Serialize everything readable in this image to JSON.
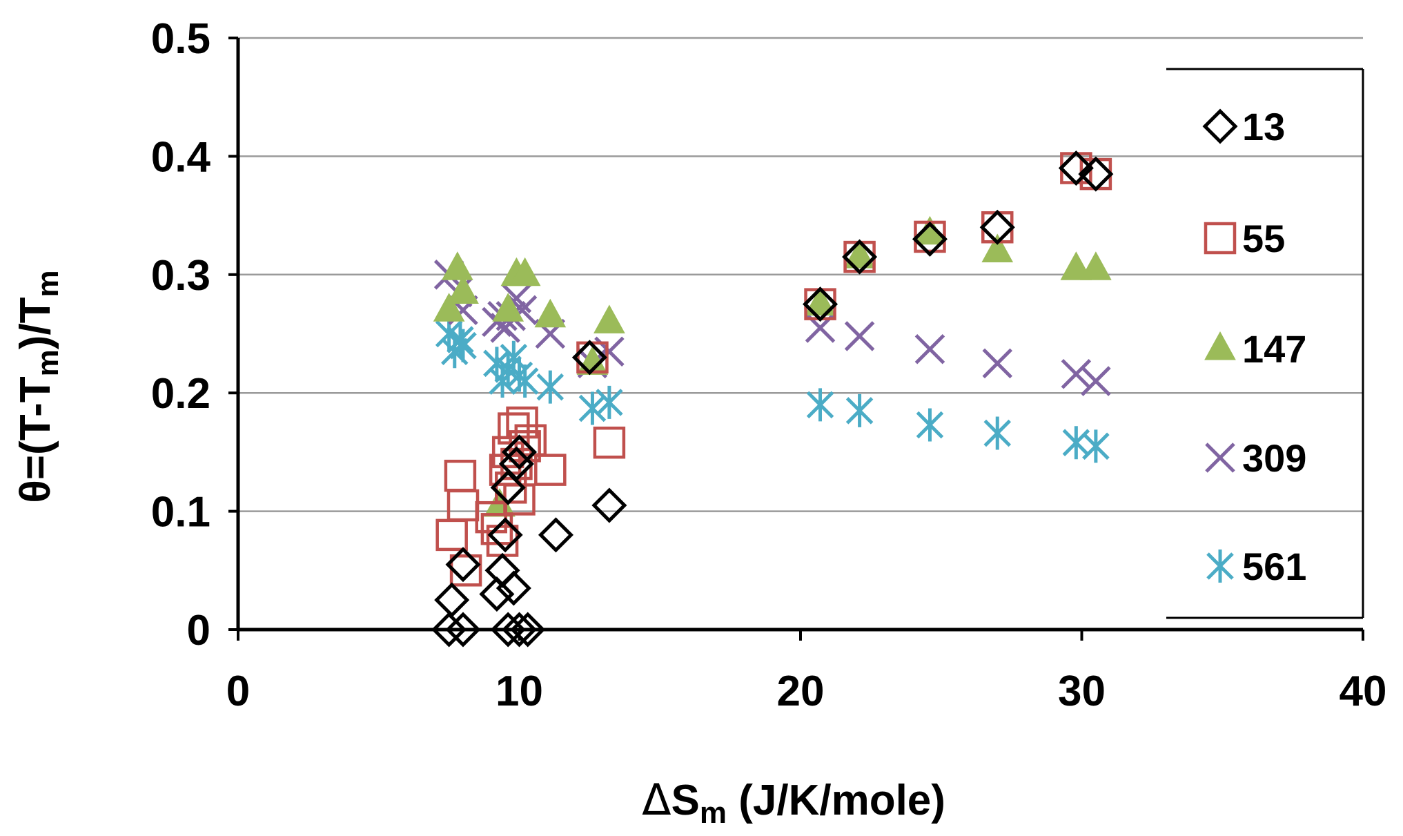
{
  "chart_data": {
    "type": "scatter",
    "title": "",
    "xlabel": "ΔSm (J/K/mole)",
    "xlabel_parts": {
      "delta": "Δ",
      "s": "S",
      "sub": "m",
      "unit": " (J/K/mole)"
    },
    "ylabel": "θ=(T-Tm)/Tm",
    "ylabel_parts": {
      "p1": "θ=(T-T",
      "sub1": "m",
      "p2": ")/T",
      "sub2": "m"
    },
    "xlim": [
      0,
      40
    ],
    "ylim": [
      0,
      0.5
    ],
    "x_ticks": [
      0,
      10,
      20,
      30,
      40
    ],
    "x_tick_labels": [
      "0",
      "10",
      "20",
      "30",
      "40"
    ],
    "y_ticks": [
      0,
      0.1,
      0.2,
      0.3,
      0.4,
      0.5
    ],
    "y_tick_labels": [
      "0",
      "0.1",
      "0.2",
      "0.3",
      "0.4",
      "0.5"
    ],
    "grid": "horizontal",
    "legend_position": "right",
    "series": [
      {
        "name": "13",
        "marker": "diamond",
        "color": "#000000",
        "x": [
          7.5,
          8.0,
          7.6,
          8.0,
          9.2,
          9.4,
          9.8,
          9.6,
          10.0,
          10.3,
          9.5,
          11.3,
          13.2,
          9.6,
          9.9,
          10.0,
          12.5,
          20.7,
          22.1,
          24.6,
          27.0,
          29.8,
          30.5
        ],
        "y": [
          0.0,
          0.0,
          0.025,
          0.055,
          0.03,
          0.05,
          0.035,
          0.0,
          0.0,
          0.0,
          0.08,
          0.08,
          0.105,
          0.12,
          0.14,
          0.15,
          0.23,
          0.275,
          0.315,
          0.33,
          0.34,
          0.39,
          0.385
        ]
      },
      {
        "name": "55",
        "marker": "square",
        "color": "#c0504d",
        "x": [
          7.6,
          7.9,
          8.0,
          8.1,
          9.0,
          9.2,
          9.4,
          9.5,
          9.6,
          9.7,
          9.8,
          9.9,
          10.0,
          10.1,
          10.2,
          10.4,
          11.1,
          12.6,
          13.2,
          20.7,
          22.1,
          24.6,
          27.0,
          29.8,
          30.5
        ],
        "y": [
          0.08,
          0.13,
          0.105,
          0.05,
          0.095,
          0.085,
          0.075,
          0.135,
          0.15,
          0.12,
          0.17,
          0.14,
          0.11,
          0.175,
          0.155,
          0.16,
          0.135,
          0.23,
          0.158,
          0.275,
          0.315,
          0.332,
          0.34,
          0.39,
          0.385
        ]
      },
      {
        "name": "147",
        "marker": "triangle",
        "color": "#9bbb59",
        "x": [
          7.5,
          7.8,
          8.0,
          9.3,
          9.6,
          9.9,
          10.2,
          11.1,
          12.6,
          13.2,
          20.7,
          22.1,
          24.6,
          27.0,
          29.8,
          30.5
        ],
        "y": [
          0.27,
          0.305,
          0.285,
          0.105,
          0.27,
          0.3,
          0.3,
          0.265,
          0.225,
          0.26,
          0.275,
          0.315,
          0.335,
          0.32,
          0.305,
          0.305
        ]
      },
      {
        "name": "309",
        "marker": "x",
        "color": "#8064a2",
        "x": [
          7.5,
          7.8,
          8.0,
          9.2,
          9.5,
          9.7,
          9.9,
          10.1,
          9.4,
          11.1,
          12.6,
          13.2,
          20.7,
          22.1,
          24.6,
          27.0,
          29.8,
          30.5
        ],
        "y": [
          0.3,
          0.285,
          0.27,
          0.26,
          0.255,
          0.265,
          0.28,
          0.27,
          0.265,
          0.25,
          0.225,
          0.235,
          0.255,
          0.248,
          0.237,
          0.225,
          0.216,
          0.21
        ]
      },
      {
        "name": "561",
        "marker": "asterisk",
        "color": "#4bacc6",
        "x": [
          7.5,
          7.7,
          7.9,
          8.0,
          9.2,
          9.4,
          9.6,
          9.8,
          10.0,
          10.2,
          11.1,
          12.6,
          13.2,
          20.7,
          22.1,
          24.6,
          27.0,
          29.8,
          30.5
        ],
        "y": [
          0.25,
          0.235,
          0.245,
          0.24,
          0.225,
          0.21,
          0.22,
          0.23,
          0.215,
          0.21,
          0.205,
          0.187,
          0.192,
          0.19,
          0.185,
          0.173,
          0.166,
          0.158,
          0.155
        ]
      }
    ]
  }
}
